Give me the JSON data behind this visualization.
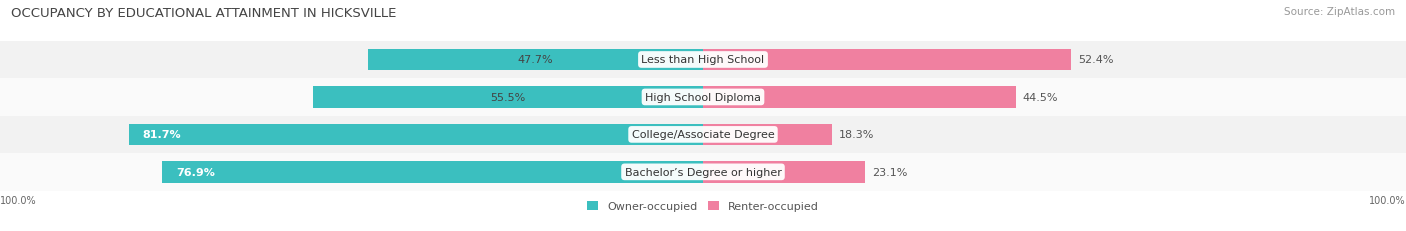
{
  "title": "OCCUPANCY BY EDUCATIONAL ATTAINMENT IN HICKSVILLE",
  "source": "Source: ZipAtlas.com",
  "categories": [
    "Less than High School",
    "High School Diploma",
    "College/Associate Degree",
    "Bachelor’s Degree or higher"
  ],
  "owner_pct": [
    47.7,
    55.5,
    81.7,
    76.9
  ],
  "renter_pct": [
    52.4,
    44.5,
    18.3,
    23.1
  ],
  "owner_color": "#3bbfbf",
  "renter_color": "#f080a0",
  "row_bg_colors": [
    "#f2f2f2",
    "#fafafa",
    "#f2f2f2",
    "#fafafa"
  ],
  "title_fontsize": 9.5,
  "source_fontsize": 7.5,
  "bar_label_fontsize": 8,
  "cat_label_fontsize": 8,
  "axis_label": "100.0%",
  "legend_labels": [
    "Owner-occupied",
    "Renter-occupied"
  ]
}
